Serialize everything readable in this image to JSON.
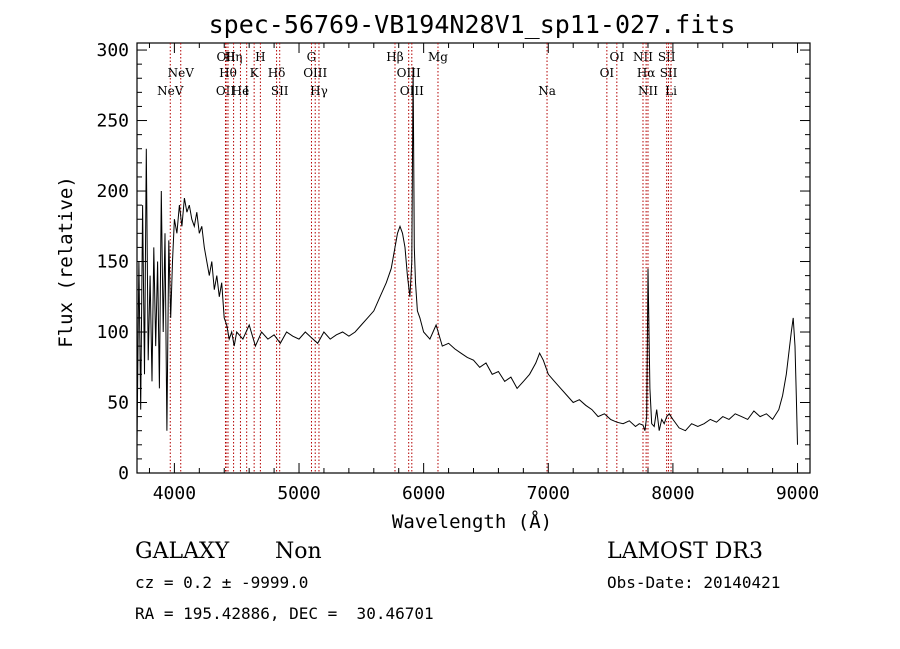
{
  "chart_data": {
    "type": "line",
    "title": "spec-56769-VB194N28V1_sp11-027.fits",
    "xlabel": "Wavelength (Å)",
    "ylabel": "Flux (relative)",
    "xlim": [
      3700,
      9100
    ],
    "ylim": [
      0,
      305
    ],
    "xticks": [
      4000,
      5000,
      6000,
      7000,
      8000,
      9000
    ],
    "yticks": [
      0,
      50,
      100,
      150,
      200,
      250,
      300
    ],
    "series": [
      {
        "name": "flux",
        "x": [
          3700,
          3715,
          3730,
          3745,
          3760,
          3775,
          3790,
          3805,
          3820,
          3835,
          3850,
          3865,
          3880,
          3895,
          3910,
          3925,
          3940,
          3955,
          3970,
          3985,
          4000,
          4020,
          4040,
          4060,
          4080,
          4100,
          4120,
          4140,
          4160,
          4180,
          4200,
          4220,
          4240,
          4260,
          4280,
          4300,
          4320,
          4340,
          4360,
          4380,
          4400,
          4420,
          4440,
          4460,
          4480,
          4500,
          4550,
          4600,
          4650,
          4700,
          4750,
          4800,
          4850,
          4900,
          4950,
          5000,
          5050,
          5100,
          5150,
          5200,
          5250,
          5300,
          5350,
          5400,
          5450,
          5500,
          5550,
          5600,
          5650,
          5700,
          5740,
          5770,
          5790,
          5810,
          5830,
          5850,
          5870,
          5890,
          5905,
          5915,
          5925,
          5935,
          5950,
          5970,
          6000,
          6050,
          6100,
          6150,
          6200,
          6250,
          6300,
          6350,
          6400,
          6450,
          6500,
          6550,
          6600,
          6650,
          6700,
          6750,
          6800,
          6850,
          6900,
          6930,
          6960,
          7000,
          7050,
          7100,
          7150,
          7200,
          7250,
          7300,
          7350,
          7400,
          7450,
          7500,
          7550,
          7600,
          7650,
          7700,
          7730,
          7760,
          7775,
          7790,
          7800,
          7815,
          7830,
          7850,
          7870,
          7890,
          7910,
          7930,
          7950,
          7970,
          8000,
          8050,
          8100,
          8150,
          8200,
          8250,
          8300,
          8350,
          8400,
          8450,
          8500,
          8550,
          8600,
          8650,
          8700,
          8750,
          8800,
          8850,
          8880,
          8910,
          8930,
          8950,
          8965,
          8980,
          8990,
          9000
        ],
        "values": [
          20,
          150,
          45,
          190,
          70,
          230,
          80,
          140,
          65,
          160,
          90,
          150,
          60,
          200,
          100,
          170,
          30,
          165,
          110,
          150,
          180,
          170,
          190,
          175,
          195,
          185,
          190,
          180,
          175,
          185,
          170,
          175,
          160,
          150,
          140,
          150,
          130,
          140,
          125,
          135,
          110,
          105,
          95,
          100,
          90,
          100,
          95,
          105,
          90,
          100,
          95,
          98,
          92,
          100,
          97,
          95,
          100,
          96,
          92,
          100,
          95,
          98,
          100,
          97,
          100,
          105,
          110,
          115,
          125,
          135,
          145,
          160,
          170,
          175,
          170,
          160,
          140,
          125,
          150,
          288,
          160,
          135,
          115,
          110,
          100,
          95,
          105,
          90,
          92,
          88,
          85,
          82,
          80,
          75,
          78,
          70,
          72,
          65,
          68,
          60,
          65,
          70,
          78,
          85,
          80,
          70,
          65,
          60,
          55,
          50,
          52,
          48,
          45,
          40,
          42,
          38,
          36,
          35,
          37,
          33,
          35,
          34,
          30,
          40,
          145,
          60,
          35,
          33,
          45,
          30,
          38,
          35,
          40,
          42,
          38,
          32,
          30,
          35,
          33,
          35,
          38,
          36,
          40,
          38,
          42,
          40,
          38,
          44,
          40,
          42,
          38,
          45,
          55,
          70,
          85,
          100,
          110,
          90,
          55,
          20
        ]
      }
    ],
    "line_marks": [
      {
        "x": 3967,
        "label": "NeV",
        "row": 3
      },
      {
        "x": 4051,
        "label": "NeV",
        "row": 2
      },
      {
        "x": 4410,
        "label": "OII",
        "row": 3
      },
      {
        "x": 4415,
        "label": "OII",
        "row": 1
      },
      {
        "x": 4430,
        "label": "Hθ",
        "row": 2
      },
      {
        "x": 4475,
        "label": "Hη",
        "row": 1
      },
      {
        "x": 4530,
        "label": "He",
        "row": 3
      },
      {
        "x": 4580,
        "label": "I",
        "row": 3
      },
      {
        "x": 4640,
        "label": "K",
        "row": 2
      },
      {
        "x": 4690,
        "label": "H",
        "row": 1
      },
      {
        "x": 4820,
        "label": "Hδ",
        "row": 2
      },
      {
        "x": 4845,
        "label": "SII",
        "row": 3
      },
      {
        "x": 5100,
        "label": "G",
        "row": 1
      },
      {
        "x": 5130,
        "label": "OIII",
        "row": 2
      },
      {
        "x": 5160,
        "label": "Hγ",
        "row": 3
      },
      {
        "x": 5770,
        "label": "Hβ",
        "row": 1
      },
      {
        "x": 5880,
        "label": "OIII",
        "row": 2
      },
      {
        "x": 5905,
        "label": "OIII",
        "row": 3
      },
      {
        "x": 6115,
        "label": "Mg",
        "row": 1
      },
      {
        "x": 6990,
        "label": "Na",
        "row": 3
      },
      {
        "x": 7470,
        "label": "OI",
        "row": 2
      },
      {
        "x": 7550,
        "label": "OI",
        "row": 1
      },
      {
        "x": 7760,
        "label": "NII",
        "row": 1
      },
      {
        "x": 7785,
        "label": "Hα",
        "row": 2
      },
      {
        "x": 7800,
        "label": "NII",
        "row": 3
      },
      {
        "x": 7950,
        "label": "SII",
        "row": 1
      },
      {
        "x": 7965,
        "label": "SII",
        "row": 2
      },
      {
        "x": 7985,
        "label": "Li",
        "row": 3
      }
    ]
  },
  "info": {
    "object_class": "GALAXY",
    "subclass": "Non",
    "survey": "LAMOST DR3",
    "cz": "cz = 0.2 ± -9999.0",
    "obs_date": "Obs-Date: 20140421",
    "coords": "RA = 195.42886, DEC =  30.46701"
  }
}
